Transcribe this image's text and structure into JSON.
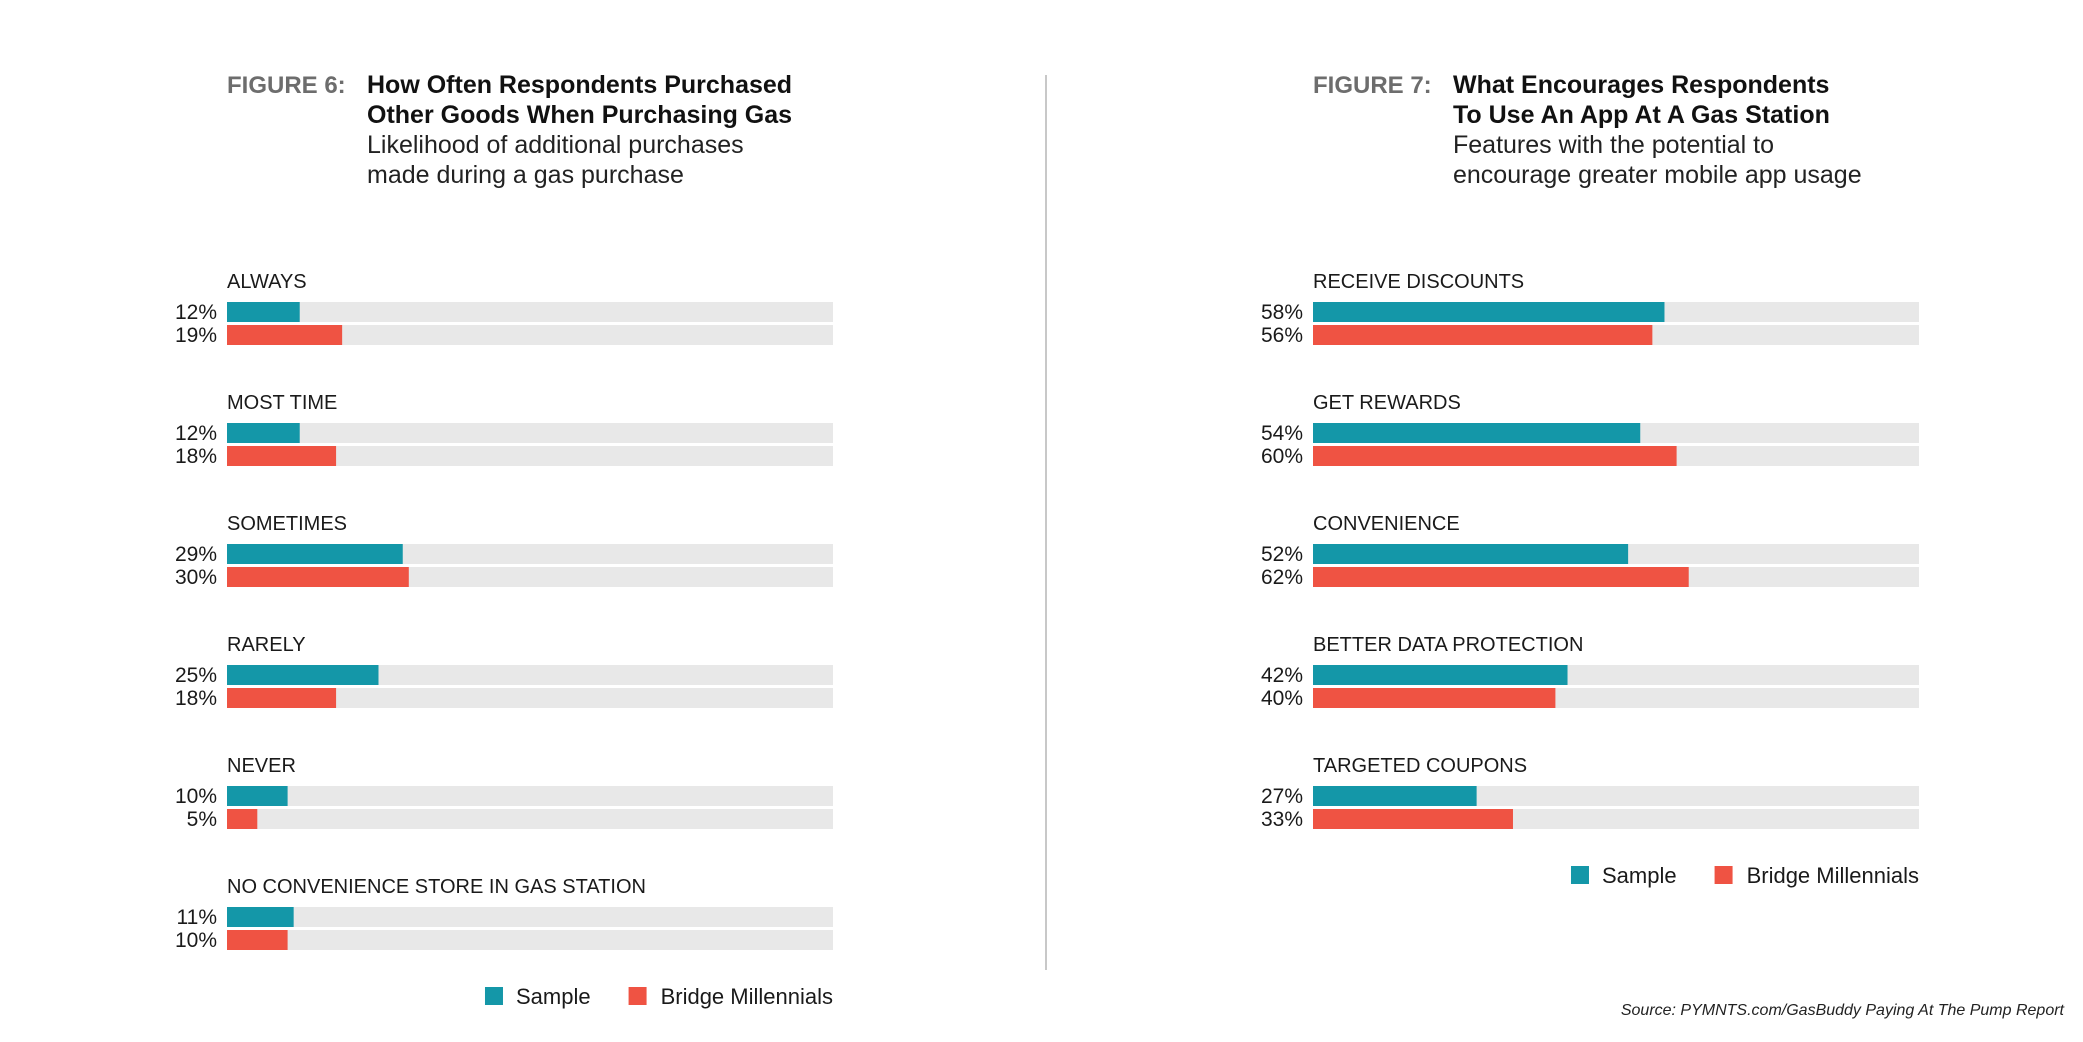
{
  "colors": {
    "sample": "#1497a8",
    "millennials": "#ef5343",
    "track": "#e8e8e8"
  },
  "source": "Source: PYMNTS.com/GasBuddy Paying At The Pump Report",
  "chart_data": [
    {
      "type": "bar",
      "orientation": "horizontal",
      "figure_label": "FIGURE 6:",
      "title_line1": "How Often Respondents Purchased",
      "title_line2": "Other Goods When Purchasing Gas",
      "subtitle_line1": "Likelihood of additional purchases",
      "subtitle_line2": "made during a gas purchase",
      "xlim": [
        0,
        100
      ],
      "categories": [
        "ALWAYS",
        "MOST TIME",
        "SOMETIMES",
        "RARELY",
        "NEVER",
        "NO CONVENIENCE STORE IN GAS STATION"
      ],
      "series": [
        {
          "name": "Sample",
          "values": [
            12,
            12,
            29,
            25,
            10,
            11
          ]
        },
        {
          "name": "Bridge Millennials",
          "values": [
            19,
            18,
            30,
            18,
            5,
            10
          ]
        }
      ],
      "legend": [
        "Sample",
        "Bridge Millennials"
      ],
      "legend_position": "bottom-right"
    },
    {
      "type": "bar",
      "orientation": "horizontal",
      "figure_label": "FIGURE 7:",
      "title_line1": "What Encourages Respondents",
      "title_line2": "To Use An App At A Gas Station",
      "subtitle_line1": "Features with the potential to",
      "subtitle_line2": "encourage greater mobile app usage",
      "xlim": [
        0,
        100
      ],
      "categories": [
        "RECEIVE DISCOUNTS",
        "GET REWARDS",
        "CONVENIENCE",
        "BETTER DATA PROTECTION",
        "TARGETED COUPONS"
      ],
      "series": [
        {
          "name": "Sample",
          "values": [
            58,
            54,
            52,
            42,
            27
          ]
        },
        {
          "name": "Bridge Millennials",
          "values": [
            56,
            60,
            62,
            40,
            33
          ]
        }
      ],
      "legend": [
        "Sample",
        "Bridge Millennials"
      ],
      "legend_position": "bottom-right"
    }
  ]
}
